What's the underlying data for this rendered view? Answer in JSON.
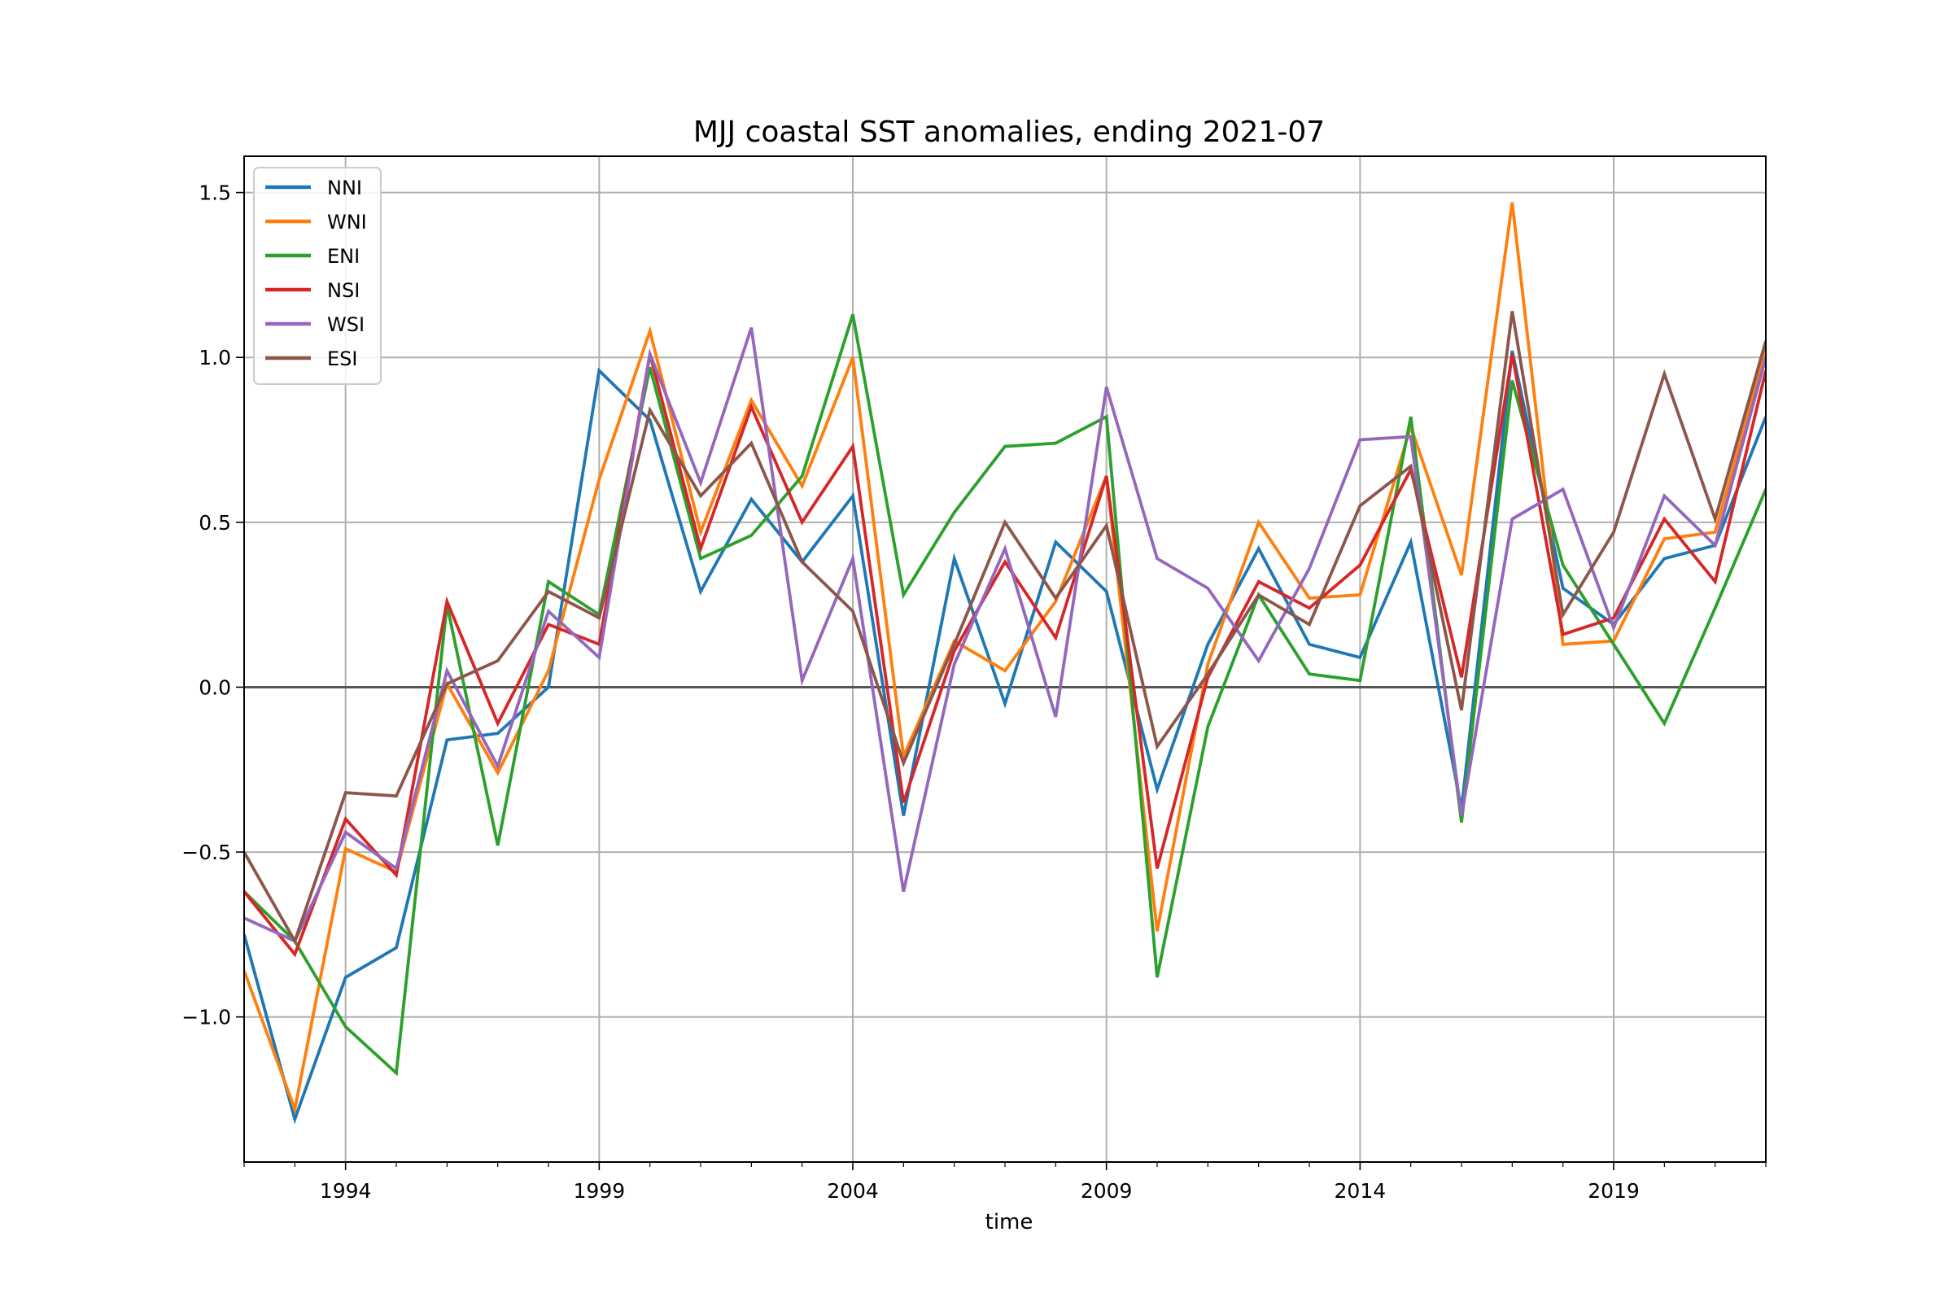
{
  "chart_data": {
    "type": "line",
    "title": "MJJ coastal SST anomalies, ending 2021-07",
    "xlabel": "time",
    "ylabel": "",
    "x": [
      1992,
      1993,
      1994,
      1995,
      1996,
      1997,
      1998,
      1999,
      2000,
      2001,
      2002,
      2003,
      2004,
      2005,
      2006,
      2007,
      2008,
      2009,
      2010,
      2011,
      2012,
      2013,
      2014,
      2015,
      2016,
      2017,
      2018,
      2019,
      2020,
      2021,
      2022
    ],
    "xticks": [
      1994,
      1999,
      2004,
      2009,
      2014,
      2019
    ],
    "xlim": [
      1992,
      2022
    ],
    "yticks": [
      -1.0,
      -0.5,
      0.0,
      0.5,
      1.0,
      1.5
    ],
    "ytick_labels": [
      "−1.0",
      "−0.5",
      "0.0",
      "0.5",
      "1.0",
      "1.5"
    ],
    "ylim": [
      -1.44,
      1.61
    ],
    "grid": true,
    "zero_line": true,
    "legend_position": "upper-left",
    "series": [
      {
        "name": "NNI",
        "color": "#1f77b4",
        "values": [
          -0.75,
          -1.31,
          -0.88,
          -0.79,
          -0.16,
          -0.14,
          0.0,
          0.96,
          0.81,
          0.29,
          0.57,
          0.38,
          0.58,
          -0.39,
          0.39,
          -0.05,
          0.44,
          0.29,
          -0.31,
          0.13,
          0.42,
          0.13,
          0.09,
          0.44,
          -0.37,
          1.02,
          0.3,
          0.19,
          0.39,
          0.43,
          0.82
        ]
      },
      {
        "name": "WNI",
        "color": "#ff7f0e",
        "values": [
          -0.86,
          -1.28,
          -0.49,
          -0.56,
          0.01,
          -0.26,
          0.05,
          0.63,
          1.08,
          0.47,
          0.87,
          0.61,
          1.0,
          -0.21,
          0.14,
          0.05,
          0.26,
          0.64,
          -0.74,
          0.07,
          0.5,
          0.27,
          0.28,
          0.79,
          0.34,
          1.47,
          0.13,
          0.14,
          0.45,
          0.47,
          1.02
        ]
      },
      {
        "name": "ENI",
        "color": "#2ca02c",
        "values": [
          -0.62,
          -0.77,
          -1.03,
          -1.17,
          0.25,
          -0.48,
          0.32,
          0.22,
          0.97,
          0.39,
          0.46,
          0.64,
          1.13,
          0.28,
          0.53,
          0.73,
          0.74,
          0.82,
          -0.88,
          -0.12,
          0.28,
          0.04,
          0.02,
          0.82,
          -0.41,
          0.93,
          0.37,
          0.13,
          -0.11,
          0.24,
          0.6
        ]
      },
      {
        "name": "NSI",
        "color": "#d62728",
        "values": [
          -0.62,
          -0.81,
          -0.4,
          -0.57,
          0.26,
          -0.11,
          0.19,
          0.13,
          1.01,
          0.42,
          0.85,
          0.5,
          0.73,
          -0.35,
          0.11,
          0.38,
          0.15,
          0.64,
          -0.55,
          0.03,
          0.32,
          0.24,
          0.37,
          0.66,
          0.03,
          1.01,
          0.16,
          0.21,
          0.51,
          0.32,
          0.96
        ]
      },
      {
        "name": "WSI",
        "color": "#9467bd",
        "values": [
          -0.7,
          -0.77,
          -0.44,
          -0.55,
          0.05,
          -0.24,
          0.23,
          0.09,
          1.01,
          0.62,
          1.09,
          0.02,
          0.39,
          -0.62,
          0.07,
          0.42,
          -0.09,
          0.91,
          0.39,
          0.3,
          0.08,
          0.36,
          0.75,
          0.76,
          -0.39,
          0.51,
          0.6,
          0.18,
          0.58,
          0.43,
          1.0
        ]
      },
      {
        "name": "ESI",
        "color": "#8c564b",
        "values": [
          -0.5,
          -0.77,
          -0.32,
          -0.33,
          0.01,
          0.08,
          0.29,
          0.21,
          0.84,
          0.58,
          0.74,
          0.38,
          0.23,
          -0.23,
          0.13,
          0.5,
          0.27,
          0.49,
          -0.18,
          0.04,
          0.28,
          0.19,
          0.55,
          0.67,
          -0.07,
          1.14,
          0.22,
          0.47,
          0.95,
          0.51,
          1.05
        ]
      }
    ]
  }
}
